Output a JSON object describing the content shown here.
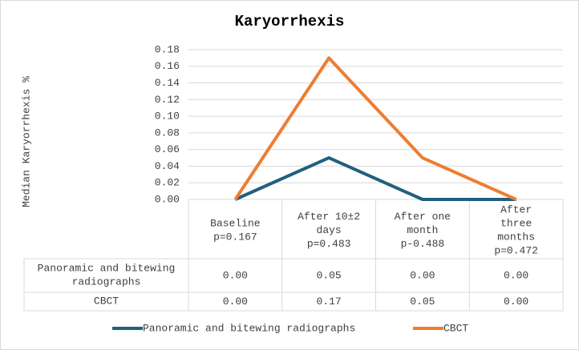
{
  "chart_data": {
    "type": "line",
    "title": "Karyorrhexis",
    "y_label": "Median Karyorrhexis %",
    "categories": [
      "Baseline\np=0.167",
      "After 10±2\ndays\np=0.483",
      "After one\nmonth\np-0.488",
      "After\nthree\nmonths\np=0.472"
    ],
    "series": [
      {
        "name": "Panoramic and bitewing radiographs",
        "color": "#215f7e",
        "values": [
          0,
          0.05,
          0,
          0
        ],
        "value_labels": [
          "0.00",
          "0.05",
          "0.00",
          "0.00"
        ]
      },
      {
        "name": "CBCT",
        "color": "#ed7d31",
        "values": [
          0,
          0.17,
          0.05,
          0
        ],
        "value_labels": [
          "0.00",
          "0.17",
          "0.05",
          "0.00"
        ]
      }
    ],
    "ylim": [
      0,
      0.18
    ],
    "yticks": [
      {
        "value": 0,
        "label": "0.00"
      },
      {
        "value": 0.02,
        "label": "0.02"
      },
      {
        "value": 0.04,
        "label": "0.04"
      },
      {
        "value": 0.06,
        "label": "0.06"
      },
      {
        "value": 0.08,
        "label": "0.08"
      },
      {
        "value": 0.1,
        "label": "0.10"
      },
      {
        "value": 0.12,
        "label": "0.12"
      },
      {
        "value": 0.14,
        "label": "0.14"
      },
      {
        "value": 0.16,
        "label": "0.16"
      },
      {
        "value": 0.18,
        "label": "0.18"
      }
    ],
    "grid": true,
    "legend": "bottom"
  }
}
